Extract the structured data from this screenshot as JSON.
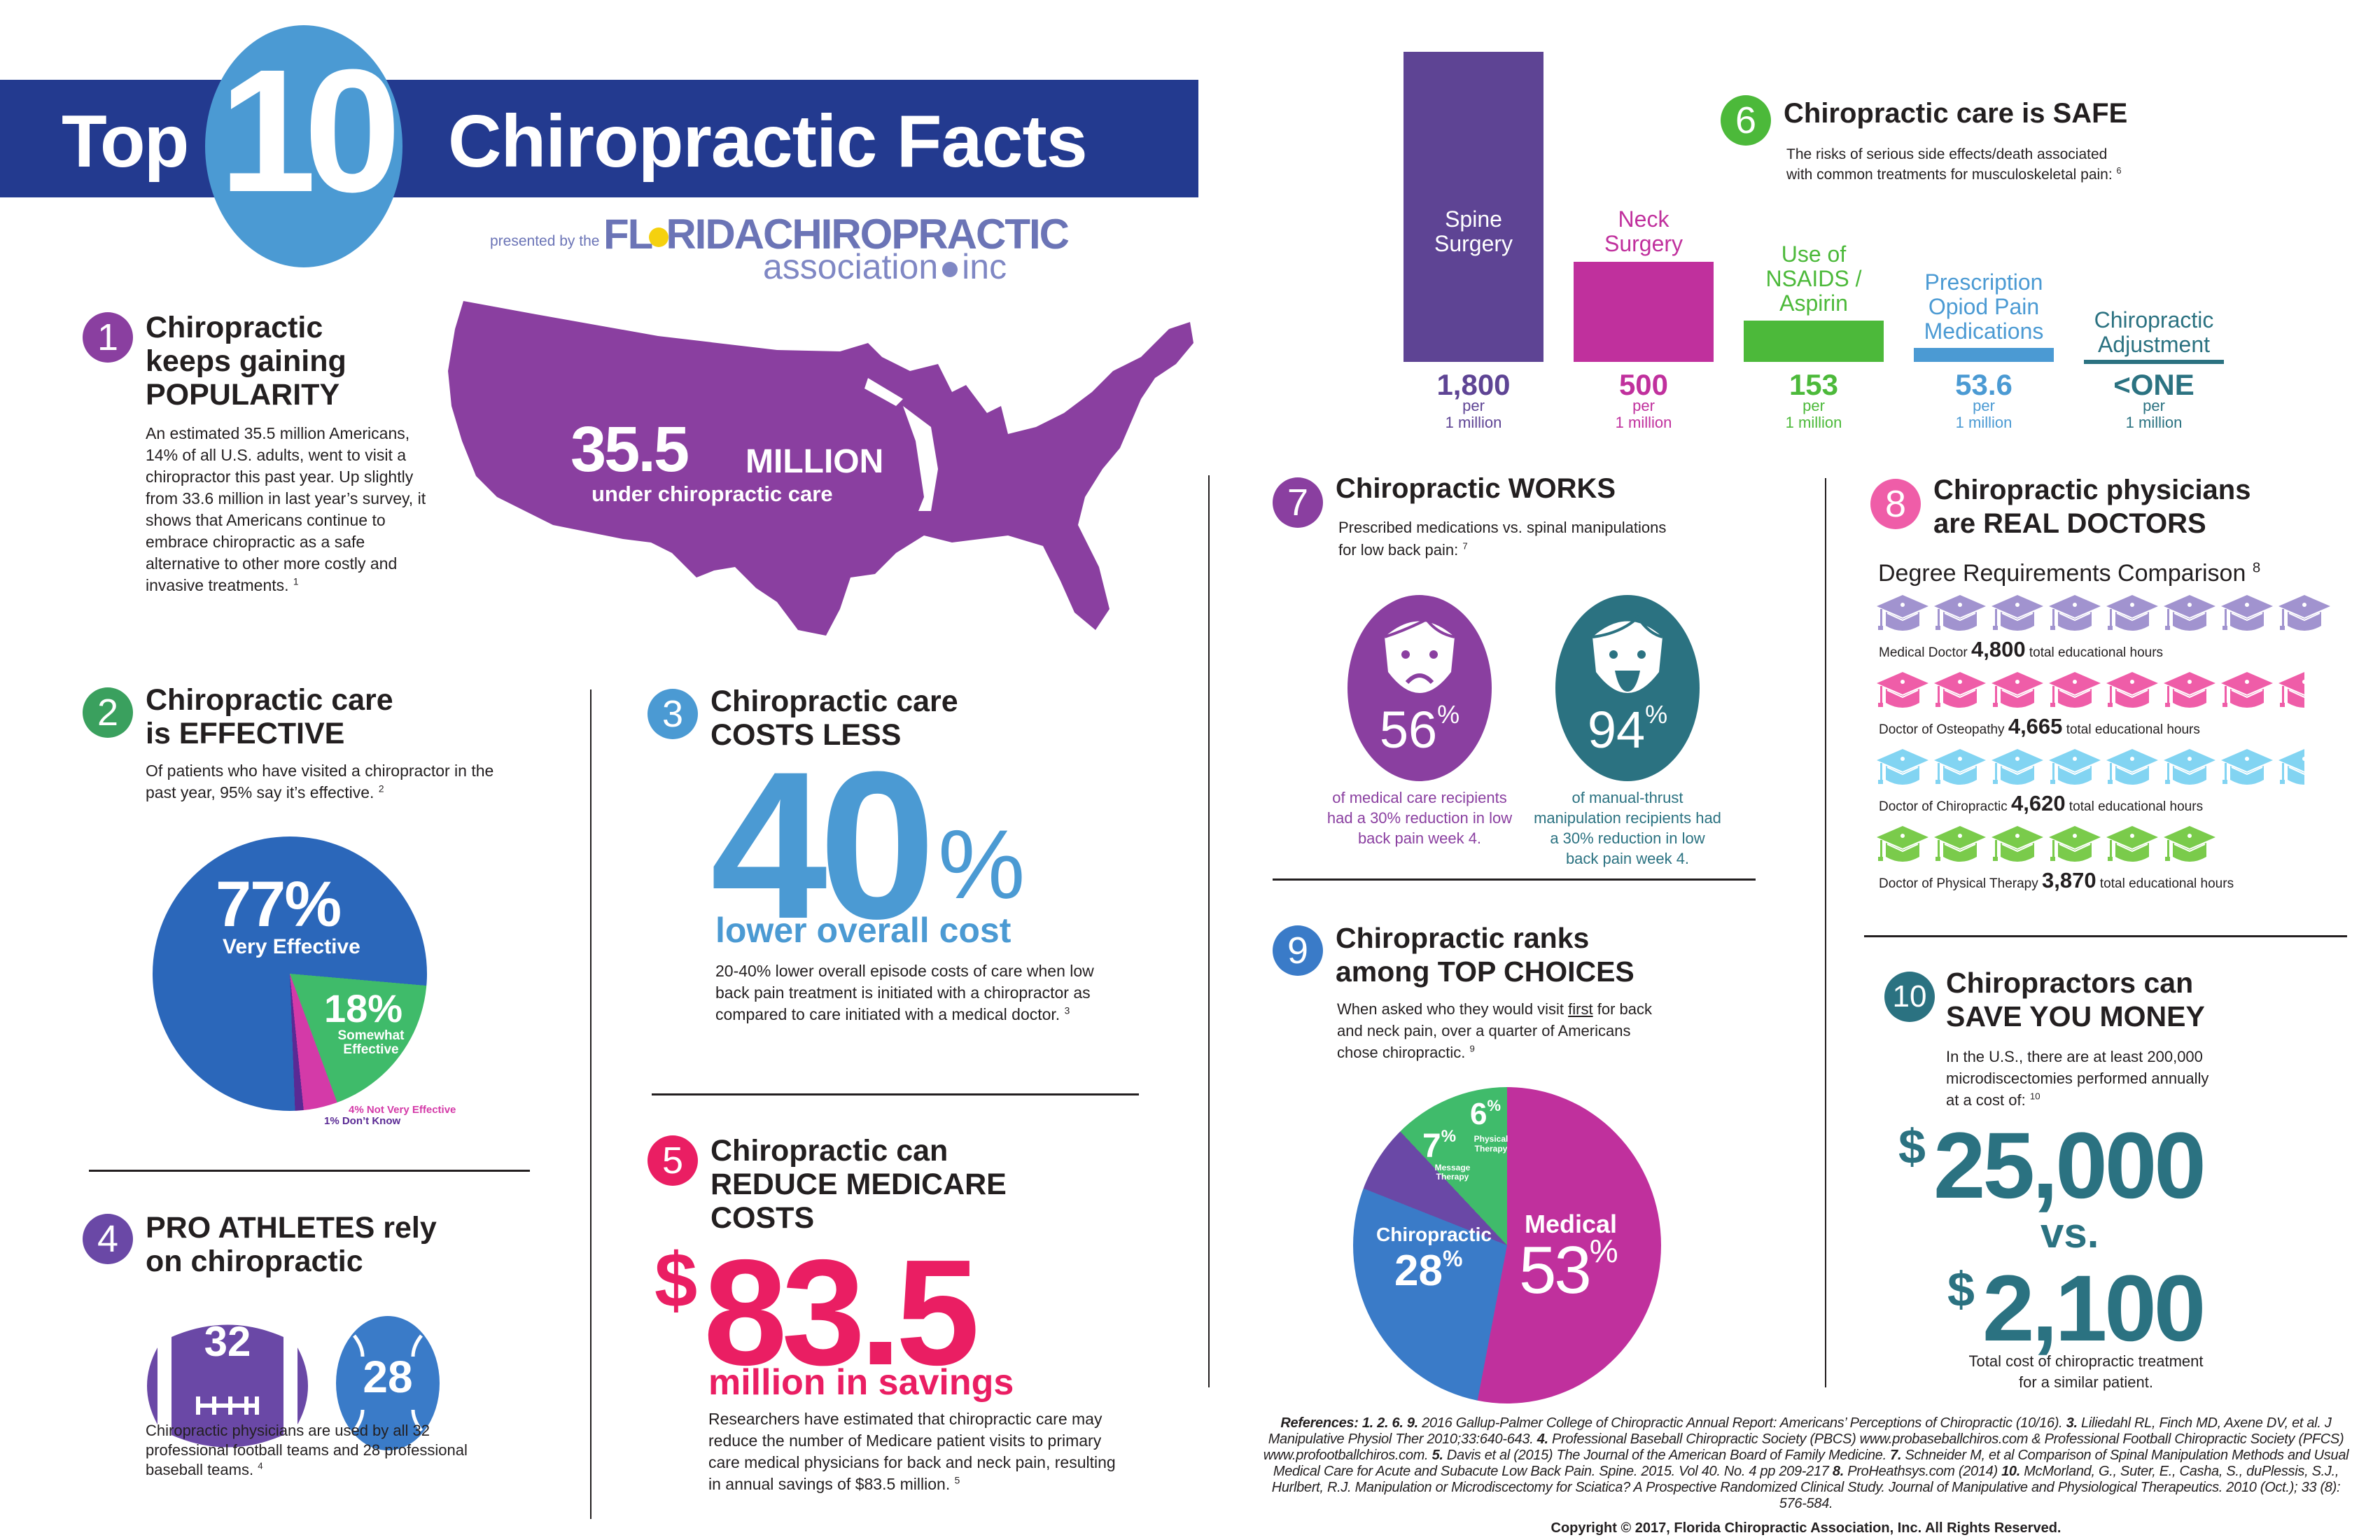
{
  "header": {
    "top": "Top",
    "number": "10",
    "title": "Chiropractic Facts",
    "presented_by": "presented by the",
    "org_line1_a": "FL",
    "org_line1_b": "RIDA",
    "org_line1_c": "CHIROPRACTIC",
    "org_line2_a": "association",
    "org_line2_b": "inc"
  },
  "colors": {
    "banner": "#233a8f",
    "banner_circle": "#4b9ad3",
    "purple": "#8a3fa0",
    "green": "#3aa05e",
    "blue": "#4b9ad3",
    "violet": "#6a48a6",
    "pink": "#ea1e63",
    "teal": "#2b7281",
    "magenta": "#c0309d"
  },
  "fact1": {
    "num": "1",
    "title_l1": "Chiropractic",
    "title_l2": "keeps gaining",
    "title_l3": "POPULARITY",
    "body": "An estimated 35.5 million Americans, 14% of all U.S. adults, went to visit a chiropractor this past year. Up slightly from 33.6 million in last year’s survey, it shows that Americans continue to embrace chiropractic as a safe alternative to other more costly and invasive treatments.",
    "ref": "1",
    "map_number": "35.5",
    "map_unit": "MILLION",
    "map_caption": "under chiropractic care"
  },
  "fact2": {
    "num": "2",
    "title_l1": "Chiropractic care",
    "title_l2": "is EFFECTIVE",
    "body": "Of patients who have visited a chiropractor in the past year, 95% say it’s effective.",
    "ref": "2",
    "slice1_pct": "77%",
    "slice1_label": "Very Effective",
    "slice2_pct": "18%",
    "slice2_label_l1": "Somewhat",
    "slice2_label_l2": "Effective",
    "slice3_label": "4% Not Very Effective",
    "slice4_label": "1% Don’t Know"
  },
  "fact3": {
    "num": "3",
    "title_l1": "Chiropractic care",
    "title_l2": "COSTS LESS",
    "big_number": "40",
    "big_pct": "%",
    "subtitle": "lower overall cost",
    "body": "20-40% lower overall episode costs of care when low back pain treatment is initiated with a chiropractor as compared to care initiated with a medical doctor.",
    "ref": "3"
  },
  "fact4": {
    "num": "4",
    "title_l1": "PRO ATHLETES rely",
    "title_l2": "on chiropractic",
    "football_num": "32",
    "baseball_num": "28",
    "body": "Chiropractic physicians are used by all 32 professional football teams and 28 professional baseball teams.",
    "ref": "4"
  },
  "fact5": {
    "num": "5",
    "title_l1": "Chiropractic can",
    "title_l2": "REDUCE MEDICARE",
    "title_l3": "COSTS",
    "dollar": "$",
    "big_number": "83.5",
    "subtitle": "million in savings",
    "body": "Researchers have estimated that chiropractic care may reduce the number of Medicare patient visits to primary care medical physicians for back and neck pain, resulting in annual savings of $83.5 million.",
    "ref": "5"
  },
  "fact6": {
    "num": "6",
    "title": "Chiropractic care is SAFE",
    "body_l1": "The risks of serious side effects/death associated",
    "body_l2": "with common treatments for musculoskeletal pain:",
    "ref": "6",
    "per_l1": "per",
    "per_l2": "1 million",
    "bars": [
      {
        "label_l1": "Spine",
        "label_l2": "Surgery",
        "label_l3": "",
        "value": "1,800",
        "color": "#5e4494"
      },
      {
        "label_l1": "Neck",
        "label_l2": "Surgery",
        "label_l3": "",
        "value": "500",
        "color": "#c0309d"
      },
      {
        "label_l1": "Use of",
        "label_l2": "NSAIDS /",
        "label_l3": "Aspirin",
        "value": "153",
        "color": "#4cb93a"
      },
      {
        "label_l1": "Prescription",
        "label_l2": "Opiod Pain",
        "label_l3": "Medications",
        "value": "53.6",
        "color": "#4b9ad3"
      },
      {
        "label_l1": "Chiropractic",
        "label_l2": "Adjustment",
        "label_l3": "",
        "value": "<ONE",
        "color": "#2b7281"
      }
    ]
  },
  "fact7": {
    "num": "7",
    "title": "Chiropractic WORKS",
    "body_l1": "Prescribed medications vs. spinal manipulations",
    "body_l2": "for low back pain:",
    "ref": "7",
    "left_pct": "56",
    "left_caption": "of medical care recipients had a 30% reduction in low back pain week 4.",
    "right_pct": "94",
    "right_caption": "of manual-thrust manipulation recipients had a 30% reduction in low back pain week 4.",
    "pct_sign": "%"
  },
  "fact8": {
    "num": "8",
    "title_l1": "Chiropractic physicians",
    "title_l2": "are REAL DOCTORS",
    "subtitle": "Degree Requirements Comparison",
    "ref": "8",
    "suffix": "total educational hours",
    "rows": [
      {
        "label": "Medical Doctor",
        "hours": "4,800",
        "caps": 8,
        "color": "#a193cf"
      },
      {
        "label": "Doctor of Osteopathy",
        "hours": "4,665",
        "caps": 7.5,
        "color": "#ef5da8"
      },
      {
        "label": "Doctor of Chiropractic",
        "hours": "4,620",
        "caps": 7.5,
        "color": "#82d4f2"
      },
      {
        "label": "Doctor of Physical Therapy",
        "hours": "3,870",
        "caps": 6,
        "color": "#7acb4b"
      }
    ]
  },
  "fact9": {
    "num": "9",
    "title_l1": "Chiropractic ranks",
    "title_l2": "among TOP CHOICES",
    "body_l1_pre": "When asked who they would visit ",
    "body_l1_u": "first",
    "body_l1_post": " for back",
    "body_l2": "and neck pain, over a quarter of Americans",
    "body_l3": "chose chiropractic.",
    "ref": "9",
    "medical_label": "Medical",
    "medical_pct": "53",
    "chiro_label": "Chiropractic",
    "chiro_pct": "28",
    "massage_pct": "7",
    "massage_l1": "Message",
    "massage_l2": "Therapy",
    "pt_pct": "6",
    "pt_l1": "Physical",
    "pt_l2": "Therapy",
    "pct_sign": "%"
  },
  "fact10": {
    "num": "10",
    "title_l1": "Chiropractors can",
    "title_l2": "SAVE YOU MONEY",
    "body_l1": "In the U.S., there are at least 200,000",
    "body_l2": "microdiscectomies performed annually",
    "body_l3": "at a cost of:",
    "ref": "10",
    "dollar": "$",
    "cost_surgery": "25,000",
    "vs": "vs.",
    "cost_chiro": "2,100",
    "caption_l1": "Total cost of chiropractic treatment",
    "caption_l2": "for a similar patient."
  },
  "references": {
    "label": "References:",
    "r1_num": "1. 2. 6. 9.",
    "r1": " 2016 Gallup-Palmer College of Chiropractic Annual Report: Americans’ Perceptions of Chiropractic (10/16). ",
    "r3_num": "3.",
    "r3": " Liliedahl RL, Finch MD, Axene DV, et al. J Manipulative Physiol Ther 2010;33:640-643. ",
    "r4_num": "4.",
    "r4": " Professional Baseball Chiropractic Society (PBCS) www.probaseballchiros.com & Professional Football Chiropractic Society (PFCS) www.profootballchiros.com. ",
    "r5_num": "5.",
    "r5": " Davis et al (2015) The Journal of the American Board of Family Medicine. ",
    "r7_num": "7.",
    "r7": " Schneider M, et al Comparison of Spinal Manipulation Methods and Usual Medical Care for Acute and Subacute Low Back Pain. Spine. 2015. Vol 40. No. 4 pp 209-217 ",
    "r8_num": "8.",
    "r8": " ProHeathsys.com (2014) ",
    "r10_num": "10.",
    "r10": " McMorland, G., Suter, E., Casha, S., duPlessis, S.J., Hurlbert, R.J. Manipulation or Microdiscectomy for Sciatica? A Prospective Randomized Clinical Study. Journal of Manipulative and Physiological Therapeutics. 2010 (Oct.); 33 (8): 576-584.",
    "copyright": "Copyright © 2017, Florida Chiropractic Association, Inc. All Rights Reserved."
  }
}
